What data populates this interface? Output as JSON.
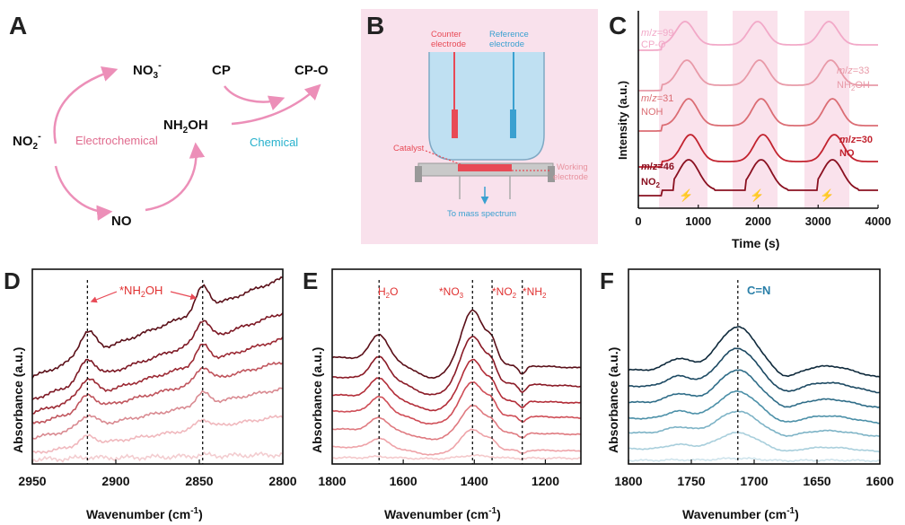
{
  "figure": {
    "colors": {
      "pink": "#ec8fb8",
      "pink_text": "#e06b8e",
      "cyan_text": "#27b1cc",
      "red": "#e84a56",
      "blue_panel_bg": "#f8d9e6",
      "beaker": "#b8dcef",
      "dark_red": "#8a1020"
    }
  },
  "panelA": {
    "label": "A",
    "species": {
      "no3": "NO3-",
      "no2": "NO2-",
      "no": "NO",
      "nh2oh": "NH2OH",
      "cp": "CP",
      "cpo": "CP-O"
    },
    "electrochemical": "Electrochemical",
    "chemical": "Chemical"
  },
  "panelB": {
    "label": "B",
    "counter_line1": "Counter",
    "counter_line2": "electrode",
    "reference_line1": "Reference",
    "reference_line2": "electrode",
    "catalyst": "Catalyst",
    "working_line1": "Working",
    "working_line2": "electrode",
    "mass_spec": "To mass spectrum"
  },
  "panelC": {
    "label": "C",
    "ylabel": "Intensity (a.u.)",
    "xlabel": "Time (s)",
    "xticks": [
      "0",
      "1000",
      "2000",
      "3000",
      "4000"
    ],
    "traces": [
      {
        "mz": "m/z=99",
        "species": "CP-O",
        "color": "#f2a9c8"
      },
      {
        "mz": "m/z=33",
        "species": "NH2OH",
        "color": "#e89aa8"
      },
      {
        "mz": "m/z=31",
        "species": "NOH",
        "color": "#db6d74"
      },
      {
        "mz": "m/z=30",
        "species": "NO",
        "color": "#c2232f"
      },
      {
        "mz": "m/z=46",
        "species": "NO2",
        "color": "#8a1020"
      }
    ]
  },
  "panelD": {
    "label": "D",
    "ylabel": "Absorbance (a.u.)",
    "xlabel": "Wavenumber (cm",
    "xlabel_sup": "-1",
    "xlabel_end": ")",
    "xticks": [
      "2950",
      "2900",
      "2850",
      "2800"
    ],
    "annotation": "*NH2OH",
    "dashed_at": [
      2917,
      2848
    ],
    "colors": [
      "#5a0f18",
      "#7d1824",
      "#9c2a34",
      "#c0555d",
      "#d98a91",
      "#f0b8bd",
      "#f3cdd0"
    ]
  },
  "panelE": {
    "label": "E",
    "ylabel": "Absorbance (a.u.)",
    "xlabel": "Wavenumber (cm",
    "xlabel_sup": "-1",
    "xlabel_end": ")",
    "xticks": [
      "1800",
      "1600",
      "1400",
      "1200"
    ],
    "annotations": [
      "H2O",
      "*NO3",
      "*NO2",
      "*NH2"
    ],
    "dashed_at": [
      1668,
      1405,
      1350,
      1265
    ],
    "colors": [
      "#5a0f18",
      "#8a1a26",
      "#b22d38",
      "#cf4e57",
      "#df7a80",
      "#eea3a8",
      "#f4c9cb"
    ]
  },
  "panelF": {
    "label": "F",
    "ylabel": "Absorbance (a.u.)",
    "xlabel": "Wavenumber (cm",
    "xlabel_sup": "-1",
    "xlabel_end": ")",
    "xticks": [
      "1800",
      "1750",
      "1700",
      "1650",
      "1600"
    ],
    "annotation": "C=N",
    "dashed_at": [
      1713
    ],
    "colors": [
      "#0f2a3c",
      "#1d4a63",
      "#2f6d88",
      "#4c90a8",
      "#7db3c6",
      "#a9cfdc",
      "#cfe4ec"
    ]
  }
}
